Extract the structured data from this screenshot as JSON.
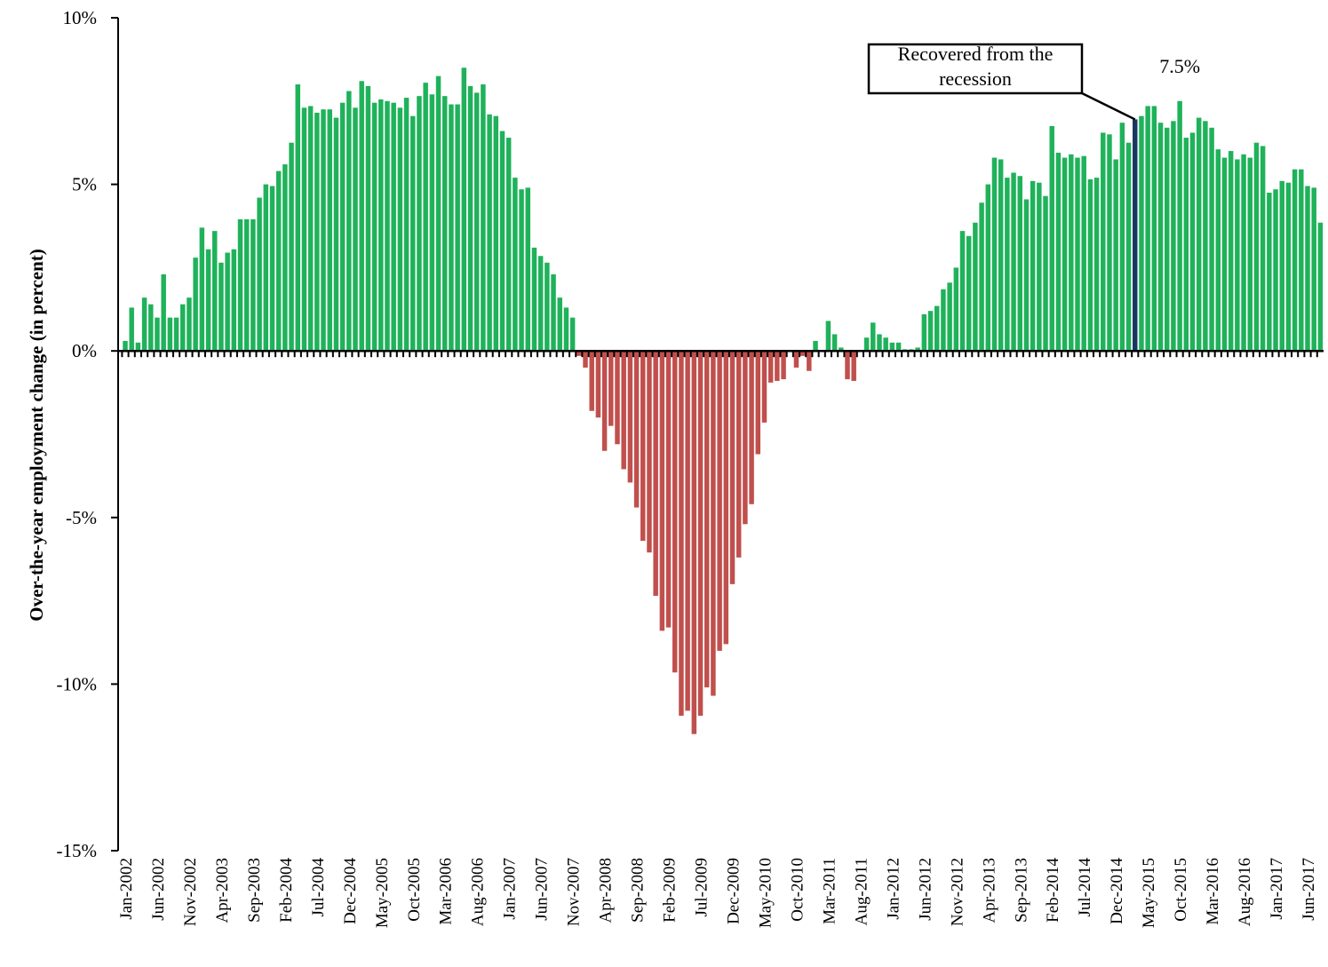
{
  "chart_data": {
    "type": "bar",
    "y_label": "Over-the-year employment change (in percent)",
    "categories": [
      "Jan-2002",
      null,
      null,
      null,
      null,
      "Jun-2002",
      null,
      null,
      null,
      null,
      "Nov-2002",
      null,
      null,
      null,
      null,
      "Apr-2003",
      null,
      null,
      null,
      null,
      "Sep-2003",
      null,
      null,
      null,
      null,
      "Feb-2004",
      null,
      null,
      null,
      null,
      "Jul-2004",
      null,
      null,
      null,
      null,
      "Dec-2004",
      null,
      null,
      null,
      null,
      "May-2005",
      null,
      null,
      null,
      null,
      "Oct-2005",
      null,
      null,
      null,
      null,
      "Mar-2006",
      null,
      null,
      null,
      null,
      "Aug-2006",
      null,
      null,
      null,
      null,
      "Jan-2007",
      null,
      null,
      null,
      null,
      "Jun-2007",
      null,
      null,
      null,
      null,
      "Nov-2007",
      null,
      null,
      null,
      null,
      "Apr-2008",
      null,
      null,
      null,
      null,
      "Sep-2008",
      null,
      null,
      null,
      null,
      "Feb-2009",
      null,
      null,
      null,
      null,
      "Jul-2009",
      null,
      null,
      null,
      null,
      "Dec-2009",
      null,
      null,
      null,
      null,
      "May-2010",
      null,
      null,
      null,
      null,
      "Oct-2010",
      null,
      null,
      null,
      null,
      "Mar-2011",
      null,
      null,
      null,
      null,
      "Aug-2011",
      null,
      null,
      null,
      null,
      "Jan-2012",
      null,
      null,
      null,
      null,
      "Jun-2012",
      null,
      null,
      null,
      null,
      "Nov-2012",
      null,
      null,
      null,
      null,
      "Apr-2013",
      null,
      null,
      null,
      null,
      "Sep-2013",
      null,
      null,
      null,
      null,
      "Feb-2014",
      null,
      null,
      null,
      null,
      "Jul-2014",
      null,
      null,
      null,
      null,
      "Dec-2014",
      null,
      null,
      null,
      null,
      "May-2015",
      null,
      null,
      null,
      null,
      "Oct-2015",
      null,
      null,
      null,
      null,
      "Mar-2016",
      null,
      null,
      null,
      null,
      "Aug-2016",
      null,
      null,
      null,
      null,
      "Jan-2017",
      null,
      null,
      null,
      null,
      "Jun-2017",
      null,
      null
    ],
    "values": [
      0.3,
      1.3,
      0.25,
      1.6,
      1.4,
      1.0,
      2.3,
      1.0,
      1.0,
      1.4,
      1.6,
      2.8,
      3.7,
      3.05,
      3.6,
      2.65,
      2.95,
      3.05,
      3.95,
      3.95,
      3.95,
      4.6,
      5.0,
      4.95,
      5.4,
      5.6,
      6.25,
      8.0,
      7.3,
      7.35,
      7.15,
      7.25,
      7.25,
      7.0,
      7.45,
      7.8,
      7.3,
      8.1,
      7.95,
      7.45,
      7.55,
      7.5,
      7.45,
      7.3,
      7.6,
      7.05,
      7.65,
      8.05,
      7.7,
      8.25,
      7.65,
      7.4,
      7.4,
      8.5,
      7.95,
      7.75,
      8.0,
      7.1,
      7.05,
      6.6,
      6.4,
      5.2,
      4.85,
      4.9,
      3.1,
      2.85,
      2.65,
      2.3,
      1.6,
      1.3,
      1.0,
      -0.15,
      -0.5,
      -1.8,
      -2.0,
      -3.0,
      -2.25,
      -2.8,
      -3.55,
      -3.95,
      -4.7,
      -5.7,
      -6.05,
      -7.35,
      -8.4,
      -8.3,
      -9.65,
      -10.95,
      -10.8,
      -11.5,
      -10.95,
      -10.1,
      -10.35,
      -9.0,
      -8.8,
      -7.0,
      -6.2,
      -5.2,
      -4.6,
      -3.1,
      -2.15,
      -0.95,
      -0.9,
      -0.85,
      0,
      -0.5,
      -0.15,
      -0.6,
      0.3,
      0,
      0.9,
      0.5,
      0.1,
      -0.85,
      -0.9,
      0,
      0.4,
      0.85,
      0.5,
      0.4,
      0.25,
      0.25,
      0.05,
      0.05,
      0.1,
      1.1,
      1.2,
      1.35,
      1.85,
      2.05,
      2.5,
      3.6,
      3.45,
      3.85,
      4.45,
      5.0,
      5.8,
      5.75,
      5.2,
      5.35,
      5.25,
      4.55,
      5.1,
      5.05,
      4.65,
      6.75,
      5.95,
      5.8,
      5.9,
      5.8,
      5.85,
      5.15,
      5.2,
      6.55,
      6.5,
      5.75,
      6.85,
      6.25,
      6.95,
      7.05,
      7.35,
      7.35,
      6.85,
      6.7,
      6.9,
      7.5,
      6.4,
      6.55,
      7.0,
      6.9,
      6.7,
      6.05,
      5.8,
      6.0,
      5.75,
      5.9,
      5.8,
      6.25,
      6.15,
      4.75,
      4.85,
      5.1,
      5.05,
      5.45,
      5.45,
      4.95,
      4.9,
      3.85
    ],
    "value_labels": [
      null,
      null,
      null,
      null,
      null,
      null,
      null,
      null,
      null,
      null,
      null,
      null,
      null,
      null,
      null,
      null,
      null,
      null,
      null,
      null,
      null,
      null,
      null,
      null,
      null,
      null,
      null,
      null,
      null,
      null,
      null,
      null,
      null,
      null,
      null,
      null,
      null,
      null,
      null,
      null,
      null,
      null,
      null,
      null,
      null,
      null,
      null,
      null,
      null,
      null,
      null,
      null,
      null,
      null,
      null,
      null,
      null,
      null,
      null,
      null,
      null,
      null,
      null,
      null,
      null,
      null,
      null,
      null,
      null,
      null,
      null,
      null,
      null,
      null,
      null,
      null,
      null,
      null,
      null,
      null,
      null,
      null,
      null,
      null,
      null,
      null,
      null,
      null,
      null,
      null,
      null,
      null,
      null,
      null,
      null,
      null,
      null,
      null,
      null,
      null,
      null,
      null,
      null,
      null,
      null,
      null,
      null,
      null,
      null,
      null,
      null,
      null,
      null,
      null,
      null,
      null,
      null,
      null,
      null,
      null,
      null,
      null,
      null,
      null,
      null,
      null,
      null,
      null,
      null,
      null,
      null,
      null,
      null,
      null,
      null,
      null,
      null,
      null,
      null,
      null,
      null,
      null,
      null,
      null,
      null,
      null,
      null,
      null,
      null,
      null,
      null,
      null,
      null,
      null,
      null,
      null,
      null,
      null,
      null,
      null,
      null,
      null,
      null,
      null,
      null,
      "7.5%",
      null,
      null,
      null,
      null,
      null,
      null,
      null,
      null,
      null,
      null,
      null,
      null,
      null,
      null,
      null,
      null,
      null,
      null,
      null,
      null,
      null,
      null
    ],
    "positive_color": "#1fb25a",
    "negative_color": "#c0504d",
    "highlight": {
      "index": 158,
      "color": "#17375e"
    },
    "annotation": {
      "lines": [
        "Recovered from the",
        "recession"
      ]
    },
    "ylim": [
      -15,
      10
    ],
    "yticks": [
      {
        "value": -15,
        "label": "-15%"
      },
      {
        "value": -10,
        "label": "-10%"
      },
      {
        "value": -5,
        "label": "-5%"
      },
      {
        "value": 0,
        "label": "0%"
      },
      {
        "value": 5,
        "label": "5%"
      },
      {
        "value": 10,
        "label": "10%"
      }
    ],
    "grid": false
  }
}
